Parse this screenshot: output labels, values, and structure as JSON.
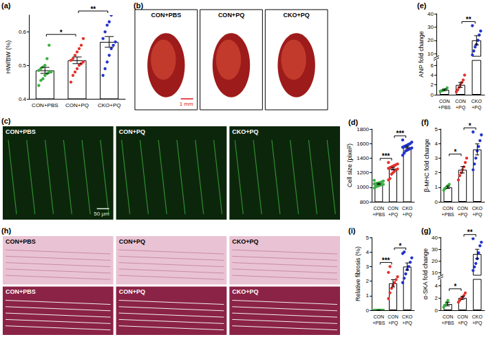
{
  "chart_data": [
    {
      "title": "(a)",
      "type": "bar",
      "y_label": "HW/BW (%)",
      "categories": [
        "CON+PBS",
        "CON+PQ",
        "CKO+PQ"
      ],
      "values": [
        0.485,
        0.515,
        0.57
      ],
      "errors": [
        0.009,
        0.01,
        0.016
      ],
      "points": [
        [
          0.44,
          0.455,
          0.46,
          0.47,
          0.475,
          0.48,
          0.48,
          0.485,
          0.49,
          0.495,
          0.5,
          0.52,
          0.56
        ],
        [
          0.45,
          0.47,
          0.48,
          0.49,
          0.5,
          0.505,
          0.51,
          0.515,
          0.52,
          0.53,
          0.54,
          0.55,
          0.56,
          0.58
        ],
        [
          0.47,
          0.49,
          0.51,
          0.53,
          0.55,
          0.56,
          0.57,
          0.58,
          0.6,
          0.62,
          0.63,
          0.65
        ]
      ],
      "colors": [
        "#3cb043",
        "#e3342f",
        "#2233cc"
      ],
      "ylim": [
        0.4,
        0.65
      ],
      "yticks": [
        0.4,
        0.5,
        0.6
      ],
      "grid": false,
      "significance": [
        {
          "from": "CON+PBS",
          "to": "CON+PQ",
          "label": "*"
        },
        {
          "from": "CON+PQ",
          "to": "CKO+PQ",
          "label": "**"
        }
      ]
    },
    {
      "title": "(e)",
      "type": "bar",
      "y_label": "ANP fold change",
      "categories": [
        "CON+PBS",
        "CON+PQ",
        "CKO+PQ"
      ],
      "values": [
        1.0,
        2.0,
        20
      ],
      "errors": [
        0.15,
        0.5,
        3.5
      ],
      "points": [
        [
          0.7,
          0.8,
          0.9,
          1.0,
          1.1,
          1.4
        ],
        [
          0.6,
          1.0,
          1.5,
          2.0,
          2.5,
          3.0,
          4.0
        ],
        [
          9,
          12,
          15,
          17,
          20,
          24,
          27,
          31
        ]
      ],
      "colors": [
        "#3cb043",
        "#e3342f",
        "#2233cc"
      ],
      "ylim": [
        0,
        40
      ],
      "ybreak": [
        7,
        8
      ],
      "yticks": [
        0,
        2,
        4,
        6,
        10,
        20,
        30,
        40
      ],
      "grid": false,
      "significance": [
        {
          "from": "CON+PQ",
          "to": "CKO+PQ",
          "label": "**"
        }
      ]
    },
    {
      "title": "(d)",
      "type": "bar",
      "y_label": "Cell size (pixel²)",
      "categories": [
        "CON+PBS",
        "CON+PQ",
        "CKO+PQ"
      ],
      "values": [
        1045,
        1255,
        1550
      ],
      "errors": [
        8,
        18,
        14
      ],
      "points": [
        [
          990,
          1005,
          1015,
          1020,
          1030,
          1035,
          1040,
          1045,
          1050,
          1055,
          1060,
          1065,
          1075,
          1085,
          1095
        ],
        [
          1100,
          1120,
          1180,
          1200,
          1220,
          1240,
          1250,
          1260,
          1270,
          1280,
          1290,
          1300,
          1310,
          1320,
          1340
        ],
        [
          1440,
          1470,
          1500,
          1510,
          1520,
          1530,
          1540,
          1550,
          1560,
          1570,
          1580,
          1590,
          1600,
          1620,
          1650
        ]
      ],
      "colors": [
        "#3cb043",
        "#e3342f",
        "#2233cc"
      ],
      "ylim": [
        800,
        1800
      ],
      "yticks": [
        800,
        1000,
        1200,
        1400,
        1600,
        1800
      ],
      "grid": false,
      "significance": [
        {
          "from": "CON+PBS",
          "to": "CON+PQ",
          "label": "***"
        },
        {
          "from": "CON+PQ",
          "to": "CKO+PQ",
          "label": "***"
        }
      ]
    },
    {
      "title": "(f)",
      "type": "bar",
      "y_label": "β-MHC fold change",
      "categories": [
        "CON+PBS",
        "CON+PQ",
        "CKO+PQ"
      ],
      "values": [
        1.0,
        2.2,
        3.6
      ],
      "errors": [
        0.08,
        0.22,
        0.38
      ],
      "points": [
        [
          0.8,
          0.9,
          1.0,
          1.1,
          1.2
        ],
        [
          1.5,
          1.8,
          2.0,
          2.2,
          2.4,
          2.7,
          3.0
        ],
        [
          2.2,
          2.6,
          3.0,
          3.5,
          3.8,
          4.2,
          4.6,
          4.8
        ]
      ],
      "colors": [
        "#3cb043",
        "#e3342f",
        "#2233cc"
      ],
      "ylim": [
        0,
        5
      ],
      "yticks": [
        0,
        1,
        2,
        3,
        4,
        5
      ],
      "grid": false,
      "significance": [
        {
          "from": "CON+PBS",
          "to": "CON+PQ",
          "label": "*"
        },
        {
          "from": "CON+PQ",
          "to": "CKO+PQ",
          "label": "*"
        }
      ]
    },
    {
      "title": "(i)",
      "type": "bar",
      "y_label": "Relative fibrosis (%)",
      "categories": [
        "CON+PBS",
        "CON+PQ",
        "CKO+PQ"
      ],
      "values": [
        0,
        1.85,
        3.0
      ],
      "errors": [
        0,
        0.25,
        0.25
      ],
      "points": [
        [
          0,
          0,
          0,
          0,
          0,
          0,
          0,
          0
        ],
        [
          0.8,
          1.2,
          1.5,
          1.7,
          1.9,
          2.1,
          2.3,
          2.6,
          3.0
        ],
        [
          1.9,
          2.2,
          2.5,
          2.8,
          3.0,
          3.3,
          3.6,
          3.9,
          4.0
        ]
      ],
      "colors": [
        "#3cb043",
        "#e3342f",
        "#2233cc"
      ],
      "ylim": [
        0,
        5
      ],
      "yticks": [
        0,
        1,
        2,
        3,
        4,
        5
      ],
      "grid": false,
      "significance": [
        {
          "from": "CON+PBS",
          "to": "CON+PQ",
          "label": "***"
        },
        {
          "from": "CON+PQ",
          "to": "CKO+PQ",
          "label": "*"
        }
      ]
    },
    {
      "title": "(g)",
      "type": "bar",
      "y_label": "α-SKA fold change",
      "categories": [
        "CON+PBS",
        "CON+PQ",
        "CKO+PQ"
      ],
      "values": [
        1.0,
        2.0,
        26
      ],
      "errors": [
        0.3,
        0.25,
        4
      ],
      "points": [
        [
          0.5,
          0.8,
          1.2,
          1.6
        ],
        [
          1.3,
          1.6,
          1.9,
          2.1,
          2.4,
          2.8
        ],
        [
          12,
          15,
          18,
          22,
          27,
          33,
          36,
          39
        ]
      ],
      "colors": [
        "#3cb043",
        "#e3342f",
        "#2233cc"
      ],
      "ylim": [
        0,
        40
      ],
      "ybreak": [
        5,
        8
      ],
      "yticks": [
        0,
        2,
        4,
        10,
        20,
        30,
        40
      ],
      "grid": false,
      "significance": [
        {
          "from": "CON+PBS",
          "to": "CON+PQ",
          "label": "*"
        },
        {
          "from": "CON+PQ",
          "to": "CKO+PQ",
          "label": "**"
        }
      ]
    }
  ],
  "image_panels": [
    {
      "title": "(b)",
      "rows": [
        [
          "CON+PBS",
          "CON+PQ",
          "CKO+PQ"
        ]
      ],
      "scale_bar": "1 mm"
    },
    {
      "title": "(c)",
      "rows": [
        [
          "CON+PBS",
          "CON+PQ",
          "CKO+PQ"
        ]
      ],
      "scale_bar": "50 μm"
    },
    {
      "title": "(h)",
      "rows": [
        [
          "CON+PBS",
          "CON+PQ",
          "CKO+PQ"
        ],
        [
          "CON+PBS",
          "CON+PQ",
          "CKO+PQ"
        ]
      ]
    }
  ]
}
